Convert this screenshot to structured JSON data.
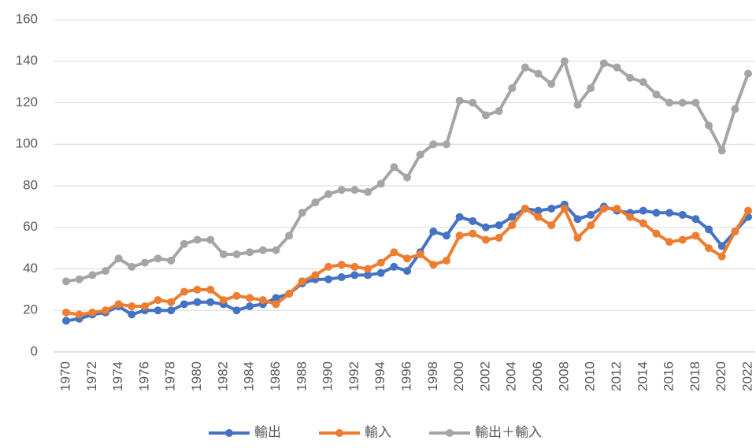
{
  "chart_data": {
    "type": "line",
    "x": [
      1970,
      1971,
      1972,
      1973,
      1974,
      1975,
      1976,
      1977,
      1978,
      1979,
      1980,
      1981,
      1982,
      1983,
      1984,
      1985,
      1986,
      1987,
      1988,
      1989,
      1990,
      1991,
      1992,
      1993,
      1994,
      1995,
      1996,
      1997,
      1998,
      1999,
      2000,
      2001,
      2002,
      2003,
      2004,
      2005,
      2006,
      2007,
      2008,
      2009,
      2010,
      2011,
      2012,
      2013,
      2014,
      2015,
      2016,
      2017,
      2018,
      2019,
      2020,
      2021,
      2022
    ],
    "series": [
      {
        "name": "輸出",
        "color": "#4472c4",
        "values": [
          15,
          16,
          18,
          19,
          22,
          18,
          20,
          20,
          20,
          23,
          24,
          24,
          23,
          20,
          22,
          23,
          26,
          28,
          33,
          35,
          35,
          36,
          37,
          37,
          38,
          41,
          39,
          48,
          58,
          56,
          65,
          63,
          60,
          61,
          65,
          69,
          68,
          69,
          71,
          64,
          66,
          70,
          68,
          67,
          68,
          67,
          67,
          66,
          64,
          59,
          51,
          58,
          65
        ]
      },
      {
        "name": "輸入",
        "color": "#ed7d31",
        "values": [
          19,
          18,
          19,
          20,
          23,
          22,
          22,
          25,
          24,
          29,
          30,
          30,
          25,
          27,
          26,
          25,
          23,
          28,
          34,
          37,
          41,
          42,
          41,
          40,
          43,
          48,
          45,
          47,
          42,
          44,
          56,
          57,
          54,
          55,
          61,
          69,
          65,
          61,
          69,
          55,
          61,
          69,
          69,
          65,
          62,
          57,
          53,
          54,
          56,
          50,
          46,
          58,
          68
        ]
      },
      {
        "name": "輸出＋輸入",
        "color": "#a5a5a5",
        "values": [
          34,
          35,
          37,
          39,
          45,
          41,
          43,
          45,
          44,
          52,
          54,
          54,
          47,
          47,
          48,
          49,
          49,
          56,
          67,
          72,
          76,
          78,
          78,
          77,
          81,
          89,
          84,
          95,
          100,
          100,
          121,
          120,
          114,
          116,
          127,
          137,
          134,
          129,
          140,
          119,
          127,
          139,
          137,
          132,
          130,
          124,
          120,
          120,
          120,
          109,
          97,
          117,
          134
        ]
      }
    ],
    "xlim": [
      1970,
      2022
    ],
    "xticks": [
      1970,
      1972,
      1974,
      1976,
      1978,
      1980,
      1982,
      1984,
      1986,
      1988,
      1990,
      1992,
      1994,
      1996,
      1998,
      2000,
      2002,
      2004,
      2006,
      2008,
      2010,
      2012,
      2014,
      2016,
      2018,
      2020,
      2022
    ],
    "ylim": [
      0,
      160
    ],
    "yticks": [
      0,
      20,
      40,
      60,
      80,
      100,
      120,
      140,
      160
    ],
    "grid": true,
    "legend": "bottom"
  }
}
